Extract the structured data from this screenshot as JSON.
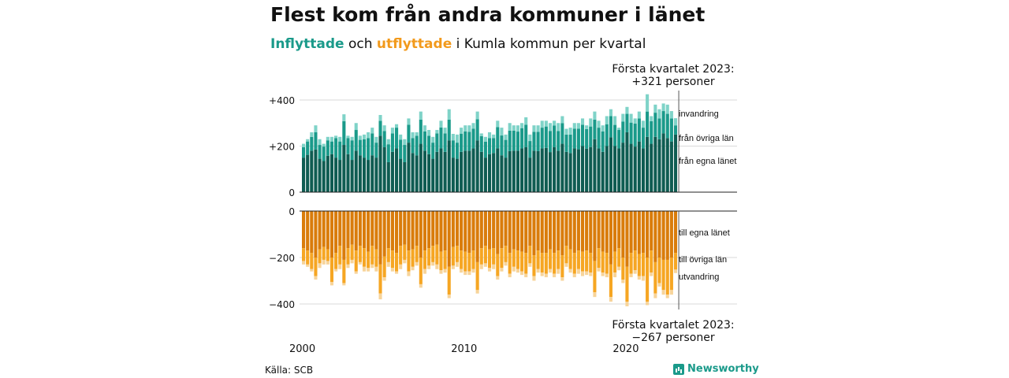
{
  "header": {
    "title": "Flest kom från andra kommuner i länet",
    "subtitle_in": "Inflyttade",
    "subtitle_mid1": " och ",
    "subtitle_out": "utflyttade",
    "subtitle_mid2": " i Kumla kommun per kvartal"
  },
  "footer": {
    "source": "Källa: SCB",
    "brand": "Newsworthy"
  },
  "colors": {
    "in_same": "#0f5c52",
    "in_other": "#1a9a8a",
    "in_abroad": "#7fd3c8",
    "out_same": "#d97c0b",
    "out_other": "#f6a623",
    "out_abroad": "#f7d49a",
    "grid": "#d9d9d9",
    "axis": "#222222"
  },
  "chart_data": {
    "type": "bar",
    "stacked": true,
    "x_unit": "quarter",
    "x_start": "2000 Q1",
    "x_end": "2023 Q1",
    "x_tick_labels": [
      "2000",
      "2010",
      "2020"
    ],
    "top_panel": {
      "ylim": [
        0,
        420
      ],
      "y_tick_labels": [
        "0",
        "+200",
        "+400"
      ],
      "series": [
        {
          "name": "från egna länet",
          "values": [
            150,
            162,
            180,
            185,
            145,
            135,
            158,
            165,
            150,
            140,
            205,
            165,
            140,
            180,
            160,
            150,
            140,
            160,
            150,
            245,
            195,
            130,
            175,
            190,
            145,
            130,
            215,
            170,
            160,
            210,
            180,
            165,
            145,
            175,
            190,
            175,
            225,
            150,
            145,
            175,
            180,
            180,
            190,
            225,
            175,
            150,
            165,
            170,
            190,
            160,
            150,
            178,
            180,
            180,
            190,
            195,
            150,
            180,
            178,
            190,
            192,
            174,
            195,
            180,
            210,
            175,
            170,
            190,
            186,
            200,
            189,
            196,
            230,
            190,
            175,
            200,
            238,
            200,
            190,
            215,
            260,
            210,
            198,
            220,
            190,
            240,
            210,
            240,
            230,
            255,
            235,
            220,
            250
          ]
        },
        {
          "name": "från övriga län",
          "values": [
            45,
            58,
            60,
            75,
            60,
            63,
            67,
            55,
            85,
            80,
            103,
            70,
            85,
            90,
            67,
            80,
            95,
            95,
            65,
            65,
            70,
            78,
            80,
            90,
            83,
            75,
            78,
            65,
            85,
            105,
            84,
            80,
            70,
            80,
            91,
            80,
            90,
            75,
            70,
            79,
            84,
            82,
            86,
            92,
            68,
            69,
            70,
            65,
            92,
            86,
            77,
            89,
            87,
            83,
            88,
            98,
            72,
            82,
            84,
            90,
            93,
            92,
            94,
            85,
            90,
            75,
            80,
            86,
            90,
            93,
            85,
            89,
            85,
            90,
            89,
            95,
            92,
            92,
            80,
            91,
            80,
            92,
            100,
            100,
            90,
            110,
            98,
            105,
            90,
            97,
            105,
            100,
            40
          ]
        },
        {
          "name": "invandring",
          "values": [
            15,
            10,
            20,
            30,
            25,
            12,
            15,
            20,
            10,
            20,
            30,
            10,
            15,
            30,
            18,
            20,
            25,
            25,
            25,
            25,
            25,
            22,
            25,
            15,
            22,
            25,
            27,
            25,
            15,
            35,
            26,
            25,
            25,
            15,
            29,
            25,
            45,
            28,
            35,
            26,
            26,
            28,
            24,
            33,
            12,
            21,
            25,
            15,
            28,
            34,
            23,
            33,
            23,
            27,
            22,
            32,
            28,
            28,
            28,
            30,
            25,
            34,
            21,
            35,
            30,
            25,
            30,
            24,
            24,
            27,
            16,
            35,
            35,
            30,
            26,
            35,
            30,
            38,
            10,
            34,
            30,
            38,
            22,
            30,
            30,
            75,
            22,
            35,
            40,
            33,
            40,
            32,
            31
          ]
        }
      ]
    },
    "bottom_panel": {
      "ylim": [
        -420,
        0
      ],
      "y_tick_labels": [
        "0",
        "−200",
        "−400"
      ],
      "series": [
        {
          "name": "till egna länet",
          "values": [
            -160,
            -170,
            -180,
            -200,
            -165,
            -155,
            -165,
            -200,
            -180,
            -150,
            -210,
            -160,
            -145,
            -170,
            -150,
            -160,
            -175,
            -150,
            -165,
            -230,
            -195,
            -160,
            -170,
            -180,
            -150,
            -145,
            -170,
            -165,
            -150,
            -200,
            -170,
            -160,
            -150,
            -145,
            -175,
            -170,
            -240,
            -155,
            -150,
            -170,
            -175,
            -180,
            -170,
            -220,
            -160,
            -150,
            -165,
            -160,
            -185,
            -160,
            -150,
            -180,
            -165,
            -170,
            -175,
            -180,
            -150,
            -190,
            -170,
            -180,
            -180,
            -165,
            -180,
            -170,
            -190,
            -150,
            -165,
            -180,
            -170,
            -175,
            -170,
            -180,
            -215,
            -160,
            -175,
            -180,
            -230,
            -175,
            -160,
            -200,
            -240,
            -180,
            -170,
            -185,
            -180,
            -200,
            -170,
            -220,
            -200,
            -210,
            -210,
            -200,
            -180
          ]
        },
        {
          "name": "till övriga län",
          "values": [
            -55,
            -60,
            -70,
            -80,
            -60,
            -55,
            -50,
            -105,
            -70,
            -80,
            -100,
            -70,
            -65,
            -90,
            -70,
            -80,
            -70,
            -80,
            -75,
            -125,
            -90,
            -60,
            -75,
            -80,
            -80,
            -65,
            -90,
            -75,
            -70,
            -115,
            -80,
            -75,
            -70,
            -85,
            -80,
            -80,
            -120,
            -80,
            -70,
            -80,
            -85,
            -80,
            -80,
            -120,
            -70,
            -75,
            -80,
            -70,
            -95,
            -85,
            -70,
            -90,
            -75,
            -80,
            -85,
            -90,
            -75,
            -90,
            -80,
            -85,
            -90,
            -85,
            -90,
            -80,
            -95,
            -75,
            -85,
            -90,
            -80,
            -85,
            -90,
            -85,
            -135,
            -85,
            -90,
            -90,
            -140,
            -90,
            -80,
            -95,
            -150,
            -90,
            -85,
            -95,
            -100,
            -190,
            -95,
            -135,
            -110,
            -130,
            -150,
            -140,
            -72
          ]
        },
        {
          "name": "utvandring",
          "values": [
            -15,
            -10,
            -10,
            -15,
            -20,
            -20,
            -15,
            -15,
            -10,
            -20,
            -10,
            -15,
            -15,
            -10,
            -10,
            -20,
            -15,
            -15,
            -20,
            -25,
            -15,
            -20,
            -15,
            -10,
            -20,
            -15,
            -20,
            -15,
            -15,
            -15,
            -20,
            -15,
            -15,
            -20,
            -15,
            -15,
            -15,
            -15,
            -20,
            -15,
            -15,
            -15,
            -15,
            -15,
            -20,
            -15,
            -15,
            -20,
            -15,
            -15,
            -15,
            -15,
            -20,
            -15,
            -15,
            -15,
            -15,
            -20,
            -15,
            -15,
            -15,
            -15,
            -15,
            -20,
            -15,
            -15,
            -15,
            -15,
            -20,
            -20,
            -15,
            -15,
            -20,
            -15,
            -15,
            -15,
            -20,
            -20,
            -15,
            -15,
            -20,
            -15,
            -15,
            -15,
            -20,
            -15,
            -15,
            -20,
            -15,
            -20,
            -15,
            -20,
            -15
          ]
        }
      ]
    },
    "annotations": [
      {
        "position": "top",
        "line1": "Första kvartalet 2023:",
        "line2": "+321 personer"
      },
      {
        "position": "bottom",
        "line1": "Första kvartalet 2023:",
        "line2": "−267 personer"
      }
    ]
  }
}
